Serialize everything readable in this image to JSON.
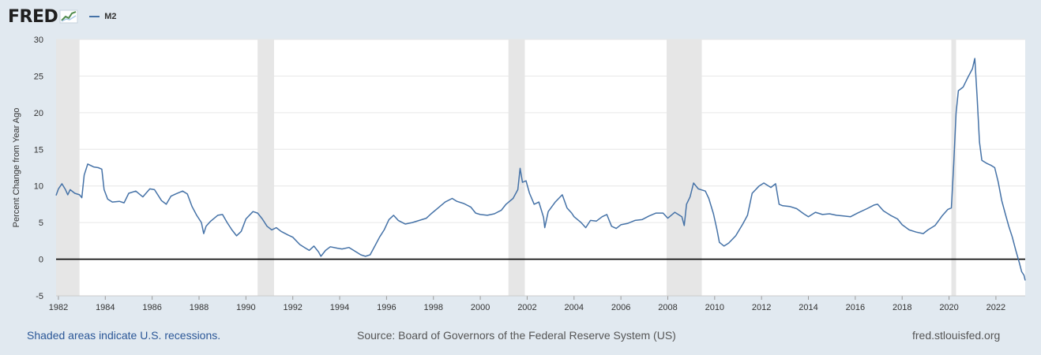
{
  "logo": {
    "text": "FRED",
    "icon": "fred-chart-icon"
  },
  "legend": {
    "series_name": "M2",
    "color": "#4572a7"
  },
  "footer": {
    "note": "Shaded areas indicate U.S. recessions.",
    "source": "Source: Board of Governors of the Federal Reserve System (US)",
    "site": "fred.stlouisfed.org"
  },
  "chart_data": {
    "type": "line",
    "ylabel": "Percent Change from Year Ago",
    "xlabel": "",
    "ylim": [
      -5,
      30
    ],
    "xlim": [
      1981.9,
      2023.25
    ],
    "yticks": [
      -5,
      0,
      5,
      10,
      15,
      20,
      25,
      30
    ],
    "xticks": [
      1982,
      1984,
      1986,
      1988,
      1990,
      1992,
      1994,
      1996,
      1998,
      2000,
      2002,
      2004,
      2006,
      2008,
      2010,
      2012,
      2014,
      2016,
      2018,
      2020,
      2022
    ],
    "grid": true,
    "zero_line": true,
    "recessions": [
      [
        1981.9,
        1982.9
      ],
      [
        1990.5,
        1991.2
      ],
      [
        2001.2,
        2001.9
      ],
      [
        2007.95,
        2009.45
      ],
      [
        2020.1,
        2020.3
      ]
    ],
    "series": [
      {
        "name": "M2",
        "color": "#4572a7",
        "points": [
          [
            1981.9,
            8.7
          ],
          [
            1982.0,
            9.6
          ],
          [
            1982.15,
            10.3
          ],
          [
            1982.3,
            9.5
          ],
          [
            1982.4,
            8.8
          ],
          [
            1982.5,
            9.5
          ],
          [
            1982.7,
            9.0
          ],
          [
            1982.9,
            8.8
          ],
          [
            1983.0,
            8.4
          ],
          [
            1983.1,
            11.5
          ],
          [
            1983.25,
            13.0
          ],
          [
            1983.5,
            12.6
          ],
          [
            1983.7,
            12.5
          ],
          [
            1983.85,
            12.3
          ],
          [
            1983.95,
            9.5
          ],
          [
            1984.1,
            8.2
          ],
          [
            1984.3,
            7.8
          ],
          [
            1984.6,
            7.9
          ],
          [
            1984.8,
            7.7
          ],
          [
            1985.0,
            9.0
          ],
          [
            1985.3,
            9.3
          ],
          [
            1985.6,
            8.5
          ],
          [
            1985.9,
            9.6
          ],
          [
            1986.1,
            9.5
          ],
          [
            1986.4,
            8.0
          ],
          [
            1986.6,
            7.5
          ],
          [
            1986.8,
            8.6
          ],
          [
            1987.0,
            8.9
          ],
          [
            1987.3,
            9.3
          ],
          [
            1987.5,
            8.9
          ],
          [
            1987.7,
            7.2
          ],
          [
            1987.9,
            6.0
          ],
          [
            1988.1,
            5.0
          ],
          [
            1988.2,
            3.5
          ],
          [
            1988.3,
            4.5
          ],
          [
            1988.5,
            5.2
          ],
          [
            1988.8,
            6.0
          ],
          [
            1989.0,
            6.1
          ],
          [
            1989.2,
            5.0
          ],
          [
            1989.4,
            4.0
          ],
          [
            1989.6,
            3.2
          ],
          [
            1989.8,
            3.8
          ],
          [
            1990.0,
            5.5
          ],
          [
            1990.3,
            6.5
          ],
          [
            1990.5,
            6.3
          ],
          [
            1990.7,
            5.5
          ],
          [
            1990.9,
            4.5
          ],
          [
            1991.1,
            4.0
          ],
          [
            1991.3,
            4.3
          ],
          [
            1991.5,
            3.8
          ],
          [
            1991.8,
            3.3
          ],
          [
            1992.0,
            3.0
          ],
          [
            1992.3,
            2.0
          ],
          [
            1992.5,
            1.6
          ],
          [
            1992.7,
            1.2
          ],
          [
            1992.9,
            1.8
          ],
          [
            1993.1,
            1.0
          ],
          [
            1993.2,
            0.4
          ],
          [
            1993.4,
            1.2
          ],
          [
            1993.6,
            1.7
          ],
          [
            1993.9,
            1.5
          ],
          [
            1994.1,
            1.4
          ],
          [
            1994.4,
            1.6
          ],
          [
            1994.7,
            1.0
          ],
          [
            1994.9,
            0.6
          ],
          [
            1995.1,
            0.4
          ],
          [
            1995.3,
            0.6
          ],
          [
            1995.5,
            1.8
          ],
          [
            1995.7,
            3.0
          ],
          [
            1995.9,
            4.0
          ],
          [
            1996.1,
            5.4
          ],
          [
            1996.3,
            6.0
          ],
          [
            1996.5,
            5.3
          ],
          [
            1996.8,
            4.8
          ],
          [
            1997.1,
            5.0
          ],
          [
            1997.4,
            5.3
          ],
          [
            1997.7,
            5.6
          ],
          [
            1997.9,
            6.2
          ],
          [
            1998.2,
            7.0
          ],
          [
            1998.5,
            7.8
          ],
          [
            1998.8,
            8.3
          ],
          [
            1999.0,
            7.9
          ],
          [
            1999.3,
            7.6
          ],
          [
            1999.6,
            7.1
          ],
          [
            1999.8,
            6.3
          ],
          [
            2000.0,
            6.1
          ],
          [
            2000.3,
            6.0
          ],
          [
            2000.6,
            6.2
          ],
          [
            2000.9,
            6.7
          ],
          [
            2001.1,
            7.5
          ],
          [
            2001.4,
            8.3
          ],
          [
            2001.6,
            9.5
          ],
          [
            2001.7,
            12.4
          ],
          [
            2001.8,
            10.5
          ],
          [
            2001.95,
            10.7
          ],
          [
            2002.1,
            9.0
          ],
          [
            2002.3,
            7.5
          ],
          [
            2002.5,
            7.8
          ],
          [
            2002.7,
            5.7
          ],
          [
            2002.75,
            4.3
          ],
          [
            2002.9,
            6.5
          ],
          [
            2003.2,
            7.8
          ],
          [
            2003.5,
            8.8
          ],
          [
            2003.7,
            7.0
          ],
          [
            2003.9,
            6.3
          ],
          [
            2004.0,
            5.8
          ],
          [
            2004.3,
            5.0
          ],
          [
            2004.5,
            4.3
          ],
          [
            2004.7,
            5.3
          ],
          [
            2004.95,
            5.2
          ],
          [
            2005.2,
            5.8
          ],
          [
            2005.4,
            6.1
          ],
          [
            2005.6,
            4.5
          ],
          [
            2005.8,
            4.2
          ],
          [
            2006.0,
            4.7
          ],
          [
            2006.3,
            4.9
          ],
          [
            2006.6,
            5.3
          ],
          [
            2006.9,
            5.4
          ],
          [
            2007.2,
            5.9
          ],
          [
            2007.5,
            6.3
          ],
          [
            2007.8,
            6.3
          ],
          [
            2008.0,
            5.6
          ],
          [
            2008.3,
            6.4
          ],
          [
            2008.6,
            5.8
          ],
          [
            2008.7,
            4.6
          ],
          [
            2008.8,
            7.5
          ],
          [
            2008.95,
            8.5
          ],
          [
            2009.1,
            10.4
          ],
          [
            2009.3,
            9.6
          ],
          [
            2009.6,
            9.3
          ],
          [
            2009.75,
            8.3
          ],
          [
            2009.95,
            6.2
          ],
          [
            2010.1,
            4.0
          ],
          [
            2010.2,
            2.3
          ],
          [
            2010.4,
            1.8
          ],
          [
            2010.6,
            2.2
          ],
          [
            2010.9,
            3.2
          ],
          [
            2011.2,
            4.8
          ],
          [
            2011.4,
            6.0
          ],
          [
            2011.6,
            9.0
          ],
          [
            2011.9,
            10.0
          ],
          [
            2012.1,
            10.4
          ],
          [
            2012.4,
            9.8
          ],
          [
            2012.6,
            10.3
          ],
          [
            2012.75,
            7.5
          ],
          [
            2012.9,
            7.3
          ],
          [
            2013.2,
            7.2
          ],
          [
            2013.5,
            6.9
          ],
          [
            2013.8,
            6.2
          ],
          [
            2014.0,
            5.8
          ],
          [
            2014.3,
            6.4
          ],
          [
            2014.6,
            6.1
          ],
          [
            2014.9,
            6.2
          ],
          [
            2015.2,
            6.0
          ],
          [
            2015.5,
            5.9
          ],
          [
            2015.8,
            5.8
          ],
          [
            2016.1,
            6.3
          ],
          [
            2016.5,
            6.9
          ],
          [
            2016.8,
            7.4
          ],
          [
            2016.95,
            7.5
          ],
          [
            2017.2,
            6.6
          ],
          [
            2017.5,
            6.0
          ],
          [
            2017.8,
            5.5
          ],
          [
            2018.0,
            4.7
          ],
          [
            2018.3,
            4.0
          ],
          [
            2018.6,
            3.7
          ],
          [
            2018.9,
            3.5
          ],
          [
            2019.1,
            4.0
          ],
          [
            2019.4,
            4.6
          ],
          [
            2019.7,
            5.9
          ],
          [
            2019.95,
            6.8
          ],
          [
            2020.1,
            7.0
          ],
          [
            2020.2,
            13.0
          ],
          [
            2020.3,
            20.0
          ],
          [
            2020.4,
            23.0
          ],
          [
            2020.6,
            23.5
          ],
          [
            2020.8,
            24.8
          ],
          [
            2021.0,
            26.0
          ],
          [
            2021.1,
            27.4
          ],
          [
            2021.2,
            22.0
          ],
          [
            2021.3,
            16.0
          ],
          [
            2021.4,
            13.5
          ],
          [
            2021.6,
            13.1
          ],
          [
            2021.8,
            12.8
          ],
          [
            2021.95,
            12.5
          ],
          [
            2022.1,
            10.5
          ],
          [
            2022.25,
            8.0
          ],
          [
            2022.4,
            6.2
          ],
          [
            2022.55,
            4.5
          ],
          [
            2022.7,
            3.0
          ],
          [
            2022.85,
            1.2
          ],
          [
            2023.0,
            -0.5
          ],
          [
            2023.1,
            -1.7
          ],
          [
            2023.2,
            -2.2
          ],
          [
            2023.25,
            -2.9
          ]
        ]
      }
    ]
  }
}
